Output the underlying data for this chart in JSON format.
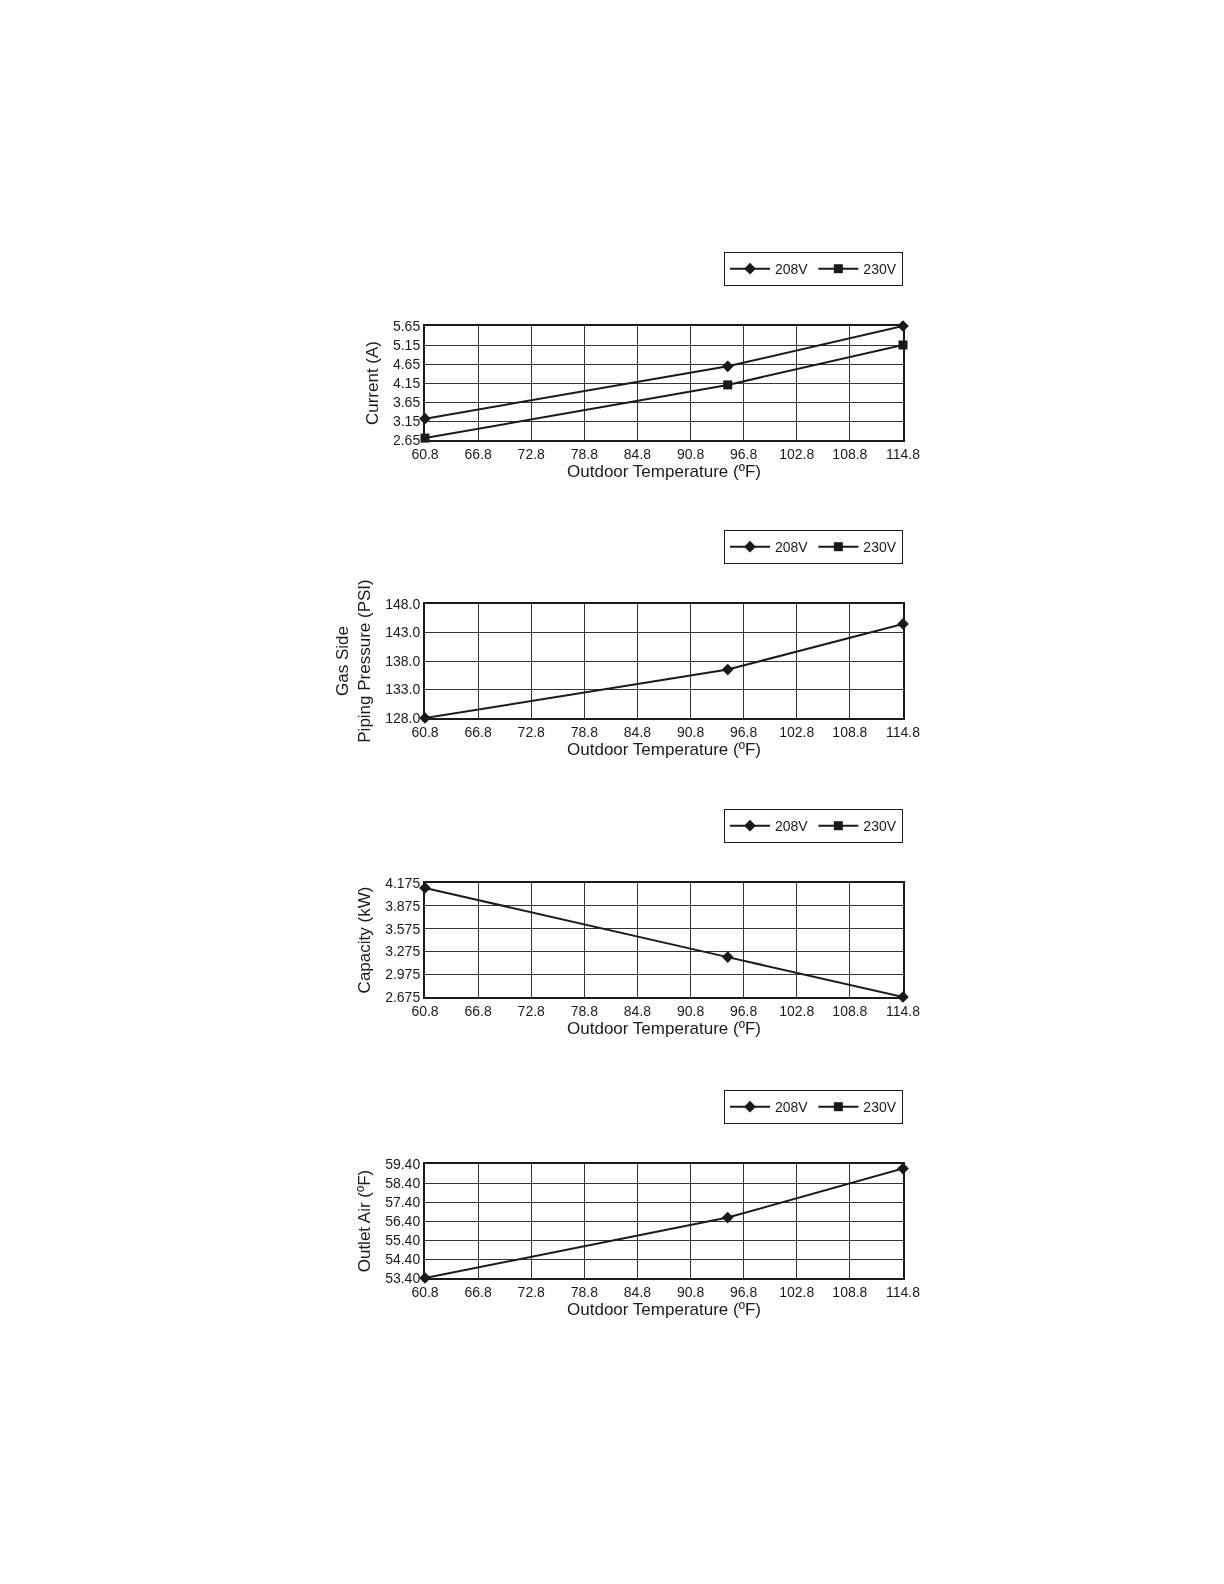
{
  "chart_data": [
    {
      "type": "line",
      "xlabel": "Outdoor Temperature (ºF)",
      "ylabel": "Current (A)",
      "x": [
        60.8,
        95,
        114.8
      ],
      "series": [
        {
          "name": "208V",
          "color": "#1a1a1a",
          "marker": "diamond",
          "values": [
            3.21,
            4.59,
            5.65
          ]
        },
        {
          "name": "230V",
          "color": "#1a1a1a",
          "marker": "square",
          "values": [
            2.7,
            4.1,
            5.15
          ]
        }
      ],
      "xlim": [
        60.8,
        114.8
      ],
      "xticks": [
        60.8,
        66.8,
        72.8,
        78.8,
        84.8,
        90.8,
        96.8,
        102.8,
        108.8,
        114.8
      ],
      "ylim": [
        2.65,
        5.65
      ],
      "yticks": [
        2.65,
        3.15,
        3.65,
        4.15,
        4.65,
        5.15,
        5.65
      ],
      "grid": true,
      "legend": "top right",
      "line_style": "solid"
    },
    {
      "type": "line",
      "xlabel": "Outdoor Temperature (ºF)",
      "ylabel": "Gas Side\nPiping Pressure (PSI)",
      "x": [
        60.8,
        95,
        114.8
      ],
      "series": [
        {
          "name": "208V",
          "color": "#1a1a1a",
          "marker": "diamond",
          "values": [
            128.0,
            136.5,
            144.5
          ]
        },
        {
          "name": "230V",
          "color": "#1a1a1a",
          "marker": "square",
          "values": [
            null,
            null,
            null
          ]
        }
      ],
      "xlim": [
        60.8,
        114.8
      ],
      "xticks": [
        60.8,
        66.8,
        72.8,
        78.8,
        84.8,
        90.8,
        96.8,
        102.8,
        108.8,
        114.8
      ],
      "ylim": [
        128,
        148
      ],
      "yticks": [
        {
          "value": 128,
          "label": "128.0"
        },
        {
          "value": 133,
          "label": "133.0"
        },
        {
          "value": 138,
          "label": "138.0"
        },
        {
          "value": 143,
          "label": "143.0"
        },
        {
          "value": 148,
          "label": "148.0"
        }
      ],
      "grid": true,
      "legend": "top right",
      "line_style": "solid"
    },
    {
      "type": "line",
      "xlabel": "Outdoor Temperature (ºF)",
      "ylabel": "Capacity (kW)",
      "x": [
        60.8,
        95,
        114.8
      ],
      "series": [
        {
          "name": "208V",
          "color": "#1a1a1a",
          "marker": "diamond",
          "values": [
            4.11,
            3.2,
            2.675
          ]
        },
        {
          "name": "230V",
          "color": "#1a1a1a",
          "marker": "square",
          "values": [
            null,
            null,
            null
          ]
        }
      ],
      "xlim": [
        60.8,
        114.8
      ],
      "xticks": [
        60.8,
        66.8,
        72.8,
        78.8,
        84.8,
        90.8,
        96.8,
        102.8,
        108.8,
        114.8
      ],
      "ylim": [
        2.675,
        4.175
      ],
      "yticks": [
        2.675,
        2.975,
        3.275,
        3.575,
        3.875,
        4.175
      ],
      "grid": true,
      "legend": "top right",
      "line_style": "solid"
    },
    {
      "type": "line",
      "xlabel": "Outdoor Temperature (ºF)",
      "ylabel": "Outlet Air (ºF)",
      "x": [
        60.8,
        95,
        114.8
      ],
      "series": [
        {
          "name": "208V",
          "color": "#1a1a1a",
          "marker": "diamond",
          "values": [
            53.4,
            56.58,
            59.16
          ]
        },
        {
          "name": "230V",
          "color": "#1a1a1a",
          "marker": "square",
          "values": [
            null,
            null,
            null
          ]
        }
      ],
      "xlim": [
        60.8,
        114.8
      ],
      "xticks": [
        60.8,
        66.8,
        72.8,
        78.8,
        84.8,
        90.8,
        96.8,
        102.8,
        108.8,
        114.8
      ],
      "ylim": [
        53.4,
        59.4
      ],
      "yticks": [
        {
          "value": 53.4,
          "label": "53.40"
        },
        {
          "value": 54.4,
          "label": "54.40"
        },
        {
          "value": 55.4,
          "label": "55.40"
        },
        {
          "value": 56.4,
          "label": "56.40"
        },
        {
          "value": 57.4,
          "label": "57.40"
        },
        {
          "value": 58.4,
          "label": "58.40"
        },
        {
          "value": 59.4,
          "label": "59.40"
        }
      ],
      "grid": true,
      "legend": "top right",
      "line_style": "solid"
    }
  ]
}
